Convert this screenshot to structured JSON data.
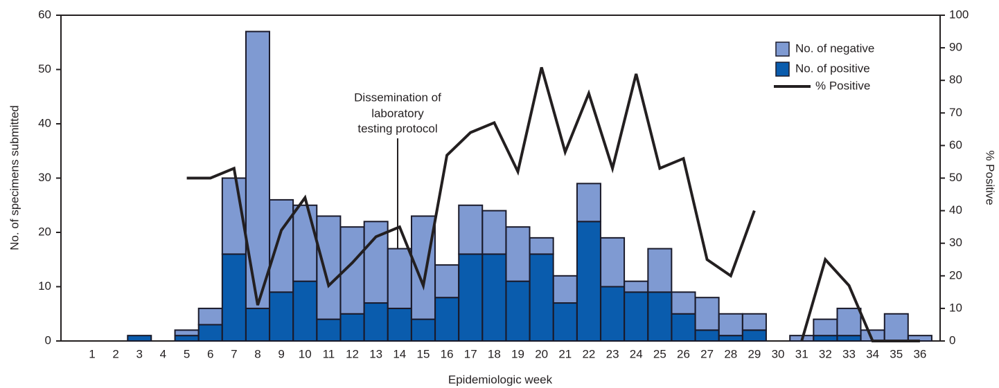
{
  "chart_data": {
    "type": "bar",
    "stacked": true,
    "x_label": "Epidemiologic week",
    "y_label": "No. of specimens submitted",
    "y2_label": "% Positive",
    "annotation": [
      "Dissemination of",
      "laboratory",
      "testing protocol"
    ],
    "categories": [
      "1",
      "2",
      "3",
      "4",
      "5",
      "6",
      "7",
      "8",
      "9",
      "10",
      "11",
      "12",
      "13",
      "14",
      "15",
      "16",
      "17",
      "18",
      "19",
      "20",
      "21",
      "22",
      "23",
      "24",
      "25",
      "26",
      "27",
      "28",
      "29",
      "30",
      "31",
      "32",
      "33",
      "34",
      "35",
      "36"
    ],
    "series": [
      {
        "name": "No. of negative",
        "color": "#7f9ad2",
        "values": [
          0,
          0,
          0,
          0,
          1,
          3,
          14,
          51,
          17,
          14,
          19,
          16,
          15,
          11,
          19,
          6,
          9,
          8,
          10,
          3,
          5,
          7,
          9,
          2,
          8,
          4,
          6,
          4,
          3,
          0,
          1,
          3,
          5,
          2,
          5,
          1
        ]
      },
      {
        "name": "No. of positive",
        "color": "#0a5cad",
        "values": [
          0,
          0,
          1,
          0,
          1,
          3,
          16,
          6,
          9,
          11,
          4,
          5,
          7,
          6,
          4,
          8,
          16,
          16,
          11,
          16,
          7,
          22,
          10,
          9,
          9,
          5,
          2,
          1,
          2,
          0,
          0,
          1,
          1,
          0,
          0,
          0
        ]
      },
      {
        "name": "% Positive",
        "type": "line",
        "axis": "y2",
        "color": "#231f20",
        "values": [
          null,
          null,
          null,
          null,
          50,
          50,
          53,
          11,
          34,
          44,
          17,
          24,
          32,
          35,
          17,
          57,
          64,
          67,
          52,
          84,
          58,
          76,
          53,
          82,
          53,
          56,
          25,
          20,
          40,
          null,
          0,
          25,
          17,
          0,
          0,
          0
        ]
      }
    ],
    "ylim": [
      0,
      60
    ],
    "yticks": [
      0,
      10,
      20,
      30,
      40,
      50,
      60
    ],
    "y2lim": [
      0,
      100
    ],
    "y2ticks": [
      0,
      10,
      20,
      30,
      40,
      50,
      60,
      70,
      80,
      90,
      100
    ]
  }
}
